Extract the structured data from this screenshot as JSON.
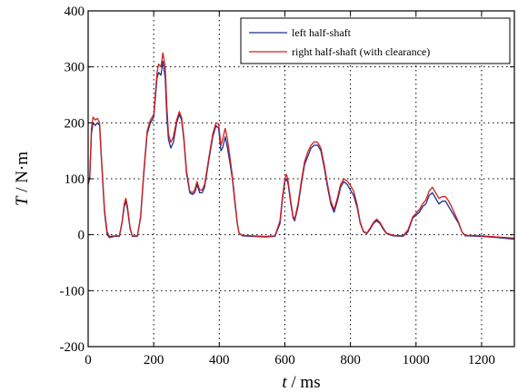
{
  "chart_data": {
    "type": "line",
    "title": "",
    "xlabel_italic": "t",
    "xlabel_rest": " / ms",
    "ylabel_italic": "T",
    "ylabel_rest": " / N·m",
    "xlim": [
      0,
      1300
    ],
    "ylim": [
      -200,
      400
    ],
    "xticks": [
      0,
      200,
      400,
      600,
      800,
      1000,
      1200
    ],
    "yticks": [
      -200,
      -100,
      0,
      100,
      200,
      300,
      400
    ],
    "xtick_labels": [
      "0",
      "200",
      "400",
      "600",
      "800",
      "1000",
      "1200"
    ],
    "ytick_labels": [
      "-200",
      "-100",
      "0",
      "100",
      "200",
      "300",
      "400"
    ],
    "grid": true,
    "legend_position": "top-right",
    "series": [
      {
        "name": "left half-shaft",
        "color": "#1f2f8f",
        "points": [
          [
            0,
            90
          ],
          [
            5,
            100
          ],
          [
            10,
            180
          ],
          [
            15,
            200
          ],
          [
            22,
            195
          ],
          [
            28,
            200
          ],
          [
            35,
            195
          ],
          [
            40,
            140
          ],
          [
            50,
            40
          ],
          [
            58,
            0
          ],
          [
            65,
            -5
          ],
          [
            80,
            -3
          ],
          [
            95,
            -3
          ],
          [
            103,
            20
          ],
          [
            110,
            50
          ],
          [
            115,
            60
          ],
          [
            120,
            45
          ],
          [
            128,
            10
          ],
          [
            135,
            -3
          ],
          [
            150,
            -3
          ],
          [
            160,
            30
          ],
          [
            170,
            110
          ],
          [
            180,
            180
          ],
          [
            190,
            200
          ],
          [
            200,
            210
          ],
          [
            210,
            280
          ],
          [
            215,
            290
          ],
          [
            222,
            285
          ],
          [
            228,
            310
          ],
          [
            235,
            280
          ],
          [
            240,
            210
          ],
          [
            245,
            170
          ],
          [
            252,
            155
          ],
          [
            260,
            165
          ],
          [
            270,
            200
          ],
          [
            278,
            215
          ],
          [
            285,
            205
          ],
          [
            292,
            170
          ],
          [
            300,
            110
          ],
          [
            310,
            75
          ],
          [
            318,
            72
          ],
          [
            325,
            75
          ],
          [
            332,
            90
          ],
          [
            340,
            75
          ],
          [
            348,
            75
          ],
          [
            355,
            85
          ],
          [
            362,
            110
          ],
          [
            370,
            140
          ],
          [
            380,
            175
          ],
          [
            390,
            195
          ],
          [
            398,
            190
          ],
          [
            405,
            150
          ],
          [
            410,
            155
          ],
          [
            418,
            175
          ],
          [
            425,
            155
          ],
          [
            432,
            130
          ],
          [
            440,
            100
          ],
          [
            448,
            55
          ],
          [
            455,
            20
          ],
          [
            460,
            3
          ],
          [
            470,
            -2
          ],
          [
            500,
            -3
          ],
          [
            540,
            -4
          ],
          [
            570,
            -3
          ],
          [
            585,
            20
          ],
          [
            592,
            60
          ],
          [
            600,
            95
          ],
          [
            605,
            100
          ],
          [
            610,
            90
          ],
          [
            618,
            55
          ],
          [
            625,
            30
          ],
          [
            630,
            25
          ],
          [
            640,
            50
          ],
          [
            650,
            90
          ],
          [
            660,
            125
          ],
          [
            670,
            140
          ],
          [
            680,
            155
          ],
          [
            690,
            160
          ],
          [
            700,
            160
          ],
          [
            710,
            150
          ],
          [
            720,
            120
          ],
          [
            730,
            85
          ],
          [
            740,
            55
          ],
          [
            750,
            40
          ],
          [
            760,
            60
          ],
          [
            770,
            85
          ],
          [
            780,
            95
          ],
          [
            790,
            90
          ],
          [
            800,
            80
          ],
          [
            810,
            70
          ],
          [
            820,
            50
          ],
          [
            830,
            20
          ],
          [
            840,
            5
          ],
          [
            850,
            2
          ],
          [
            860,
            10
          ],
          [
            870,
            20
          ],
          [
            880,
            25
          ],
          [
            890,
            20
          ],
          [
            900,
            10
          ],
          [
            910,
            2
          ],
          [
            930,
            -2
          ],
          [
            960,
            -3
          ],
          [
            975,
            5
          ],
          [
            990,
            30
          ],
          [
            1000,
            35
          ],
          [
            1010,
            40
          ],
          [
            1020,
            50
          ],
          [
            1030,
            55
          ],
          [
            1040,
            70
          ],
          [
            1050,
            75
          ],
          [
            1060,
            65
          ],
          [
            1070,
            55
          ],
          [
            1080,
            60
          ],
          [
            1090,
            60
          ],
          [
            1100,
            50
          ],
          [
            1110,
            40
          ],
          [
            1120,
            30
          ],
          [
            1130,
            20
          ],
          [
            1140,
            5
          ],
          [
            1150,
            -2
          ],
          [
            1200,
            -3
          ],
          [
            1250,
            -5
          ],
          [
            1300,
            -8
          ]
        ]
      },
      {
        "name": "right half-shaft (with clearance)",
        "color": "#d21e1e",
        "points": [
          [
            0,
            90
          ],
          [
            5,
            105
          ],
          [
            10,
            190
          ],
          [
            15,
            210
          ],
          [
            22,
            205
          ],
          [
            28,
            208
          ],
          [
            35,
            200
          ],
          [
            40,
            145
          ],
          [
            50,
            45
          ],
          [
            58,
            5
          ],
          [
            65,
            -3
          ],
          [
            80,
            -2
          ],
          [
            95,
            -2
          ],
          [
            103,
            22
          ],
          [
            110,
            55
          ],
          [
            115,
            65
          ],
          [
            120,
            50
          ],
          [
            128,
            12
          ],
          [
            135,
            -2
          ],
          [
            150,
            -2
          ],
          [
            160,
            32
          ],
          [
            170,
            115
          ],
          [
            180,
            185
          ],
          [
            190,
            205
          ],
          [
            200,
            215
          ],
          [
            210,
            290
          ],
          [
            215,
            305
          ],
          [
            222,
            300
          ],
          [
            228,
            325
          ],
          [
            235,
            300
          ],
          [
            240,
            230
          ],
          [
            245,
            180
          ],
          [
            252,
            165
          ],
          [
            260,
            175
          ],
          [
            270,
            205
          ],
          [
            278,
            220
          ],
          [
            285,
            210
          ],
          [
            292,
            175
          ],
          [
            300,
            115
          ],
          [
            310,
            78
          ],
          [
            318,
            75
          ],
          [
            325,
            80
          ],
          [
            332,
            95
          ],
          [
            340,
            80
          ],
          [
            348,
            80
          ],
          [
            355,
            90
          ],
          [
            362,
            115
          ],
          [
            370,
            145
          ],
          [
            380,
            180
          ],
          [
            390,
            200
          ],
          [
            398,
            198
          ],
          [
            405,
            160
          ],
          [
            410,
            170
          ],
          [
            418,
            190
          ],
          [
            425,
            170
          ],
          [
            432,
            140
          ],
          [
            440,
            105
          ],
          [
            448,
            60
          ],
          [
            455,
            22
          ],
          [
            460,
            3
          ],
          [
            470,
            -1
          ],
          [
            500,
            -2
          ],
          [
            540,
            -3
          ],
          [
            570,
            -2
          ],
          [
            585,
            25
          ],
          [
            592,
            65
          ],
          [
            600,
            100
          ],
          [
            605,
            108
          ],
          [
            610,
            95
          ],
          [
            618,
            60
          ],
          [
            625,
            33
          ],
          [
            630,
            28
          ],
          [
            640,
            55
          ],
          [
            650,
            95
          ],
          [
            660,
            130
          ],
          [
            670,
            148
          ],
          [
            680,
            160
          ],
          [
            690,
            166
          ],
          [
            700,
            165
          ],
          [
            710,
            155
          ],
          [
            720,
            125
          ],
          [
            730,
            90
          ],
          [
            740,
            60
          ],
          [
            750,
            45
          ],
          [
            760,
            65
          ],
          [
            770,
            90
          ],
          [
            780,
            100
          ],
          [
            790,
            96
          ],
          [
            800,
            88
          ],
          [
            810,
            78
          ],
          [
            820,
            55
          ],
          [
            830,
            22
          ],
          [
            840,
            6
          ],
          [
            850,
            3
          ],
          [
            860,
            12
          ],
          [
            870,
            22
          ],
          [
            880,
            28
          ],
          [
            890,
            22
          ],
          [
            900,
            12
          ],
          [
            910,
            3
          ],
          [
            930,
            -1
          ],
          [
            960,
            -2
          ],
          [
            975,
            8
          ],
          [
            990,
            32
          ],
          [
            1000,
            38
          ],
          [
            1010,
            45
          ],
          [
            1020,
            55
          ],
          [
            1030,
            62
          ],
          [
            1040,
            78
          ],
          [
            1050,
            85
          ],
          [
            1060,
            75
          ],
          [
            1070,
            65
          ],
          [
            1080,
            68
          ],
          [
            1090,
            68
          ],
          [
            1100,
            60
          ],
          [
            1110,
            48
          ],
          [
            1120,
            35
          ],
          [
            1130,
            22
          ],
          [
            1140,
            5
          ],
          [
            1150,
            -1
          ],
          [
            1200,
            -2
          ],
          [
            1250,
            -4
          ],
          [
            1300,
            -6
          ]
        ]
      }
    ]
  }
}
